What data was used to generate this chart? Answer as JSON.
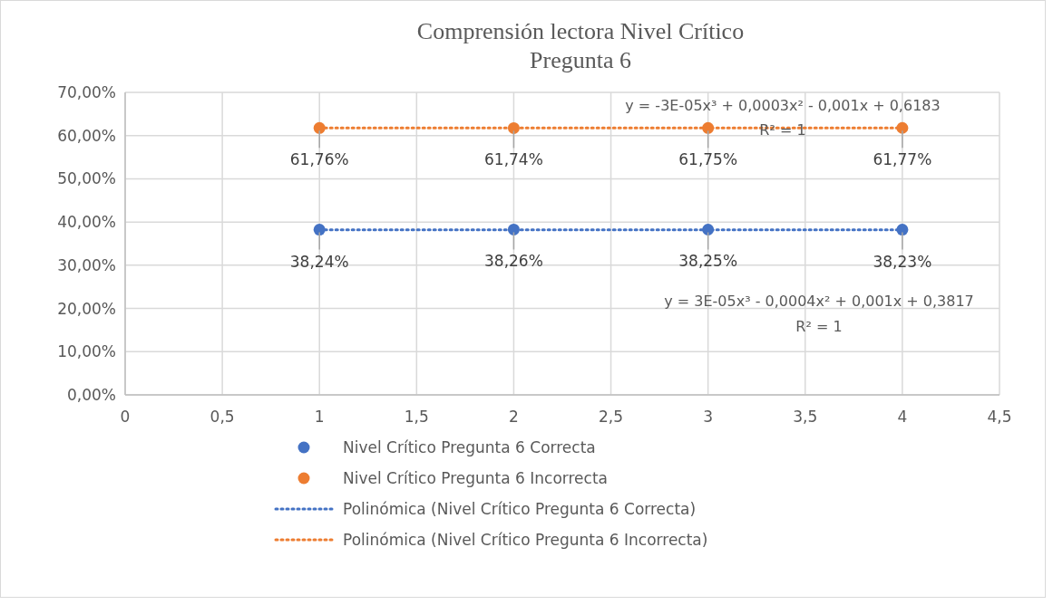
{
  "chart_data": {
    "type": "scatter",
    "title": "Comprensión lectora Nivel Crítico\nPregunta 6",
    "xlim": [
      0,
      4.5
    ],
    "xticks": [
      0,
      {
        "value": 0.5,
        "label": "0,5"
      },
      1,
      {
        "value": 1.5,
        "label": "1,5"
      },
      2,
      {
        "value": 2.5,
        "label": "2,5"
      },
      3,
      {
        "value": 3.5,
        "label": "3,5"
      },
      4,
      {
        "value": 4.5,
        "label": "4,5"
      }
    ],
    "ylim": [
      0,
      70
    ],
    "yticks": [
      {
        "value": 0,
        "label": "0,00%"
      },
      {
        "value": 10,
        "label": "10,00%"
      },
      {
        "value": 20,
        "label": "20,00%"
      },
      {
        "value": 30,
        "label": "30,00%"
      },
      {
        "value": 40,
        "label": "40,00%"
      },
      {
        "value": 50,
        "label": "50,00%"
      },
      {
        "value": 60,
        "label": "60,00%"
      },
      {
        "value": 70,
        "label": "70,00%"
      }
    ],
    "grid": true,
    "legend": "bottom",
    "series": [
      {
        "name": "Nivel Crítico Pregunta 6 Correcta",
        "marker": "circle",
        "color": "#4472c4",
        "x": [
          1,
          2,
          3,
          4
        ],
        "values": [
          38.24,
          38.26,
          38.25,
          38.23
        ],
        "value_labels": [
          "38,24%",
          "38,26%",
          "38,25%",
          "38,23%"
        ]
      },
      {
        "name": "Nivel Crítico Pregunta 6 Incorrecta",
        "marker": "circle",
        "color": "#ed7d31",
        "x": [
          1,
          2,
          3,
          4
        ],
        "values": [
          61.76,
          61.74,
          61.75,
          61.77
        ],
        "value_labels": [
          "61,76%",
          "61,74%",
          "61,75%",
          "61,77%"
        ]
      },
      {
        "name": "Polinómica (Nivel Crítico Pregunta 6 Correcta)",
        "type": "line",
        "marker": "none",
        "line_style": "dotted",
        "color": "#4472c4",
        "x": [
          1,
          4
        ],
        "values": [
          38.2,
          38.2
        ]
      },
      {
        "name": "Polinómica (Nivel Crítico Pregunta 6 Incorrecta)",
        "type": "line",
        "marker": "none",
        "line_style": "dotted",
        "color": "#ed7d31",
        "x": [
          1,
          4
        ],
        "values": [
          61.8,
          61.8
        ]
      }
    ],
    "annotations": [
      "y = -3E-05x³ + 0,0003x² - 0,001x + 0,6183",
      "R² = 1",
      "y = 3E-05x³ - 0,0004x² + 0,001x + 0,3817",
      "R² = 1"
    ]
  }
}
